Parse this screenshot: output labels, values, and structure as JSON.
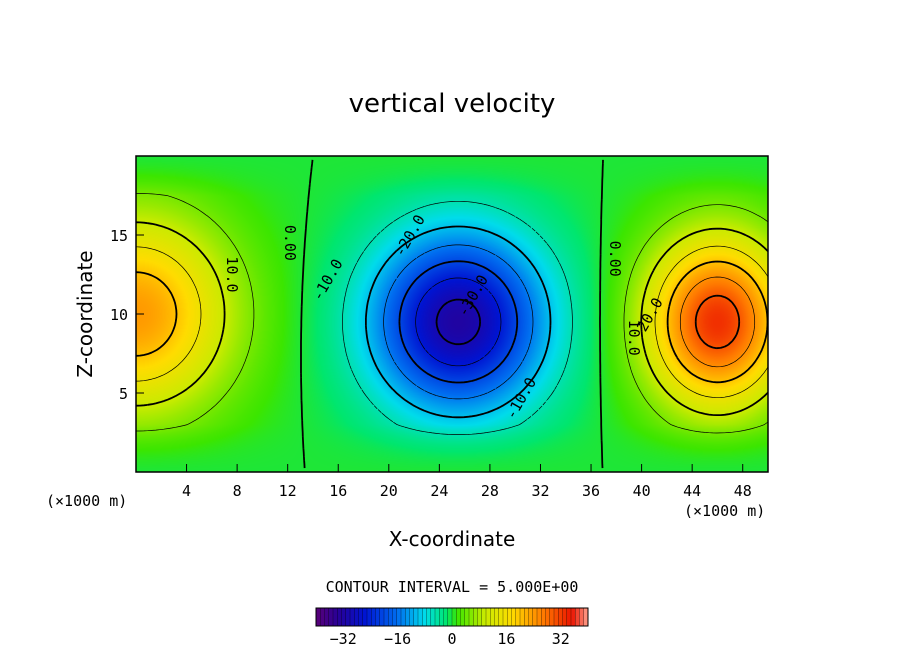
{
  "chart_data": {
    "type": "heatmap",
    "title": "vertical velocity",
    "xlabel": "X-coordinate",
    "ylabel": "Z-coordinate",
    "x_unit": "(×1000 m)",
    "z_unit": "(×1000 m)",
    "xlim": [
      0,
      50
    ],
    "ylim": [
      0,
      20
    ],
    "x_ticks": [
      4,
      8,
      12,
      16,
      20,
      24,
      28,
      32,
      36,
      40,
      44,
      48
    ],
    "y_ticks": [
      5,
      10,
      15
    ],
    "contour_interval_text": "CONTOUR INTERVAL = 5.000E+00",
    "contour_interval": 5,
    "colorbar": {
      "min": -40,
      "max": 40,
      "ticks": [
        -32,
        -16,
        0,
        16,
        32
      ]
    },
    "features": [
      {
        "kind": "updraft",
        "x": 0,
        "z": 10,
        "peak": 24
      },
      {
        "kind": "downdraft",
        "x": 25.5,
        "z": 9.5,
        "peak": -32
      },
      {
        "kind": "updraft",
        "x": 46,
        "z": 9.5,
        "peak": 33
      }
    ],
    "contour_labels": [
      {
        "text": "10.0",
        "x": 7.2,
        "z": 12.5
      },
      {
        "text": "0.00",
        "x": 11.8,
        "z": 14.5
      },
      {
        "text": "-10.0",
        "x": 15.5,
        "z": 12
      },
      {
        "text": "-20.0",
        "x": 22,
        "z": 14.8
      },
      {
        "text": "-30.0",
        "x": 27,
        "z": 11
      },
      {
        "text": "-10.0",
        "x": 30.8,
        "z": 4.5
      },
      {
        "text": "0.00",
        "x": 37.5,
        "z": 13.5
      },
      {
        "text": "10.0",
        "x": 39,
        "z": 8.5
      },
      {
        "text": "20.0",
        "x": 41,
        "z": 9.8
      }
    ],
    "colormap": "rainbow (violet-blue-cyan-green-yellow-red)",
    "dashed_negative_contours": true
  }
}
